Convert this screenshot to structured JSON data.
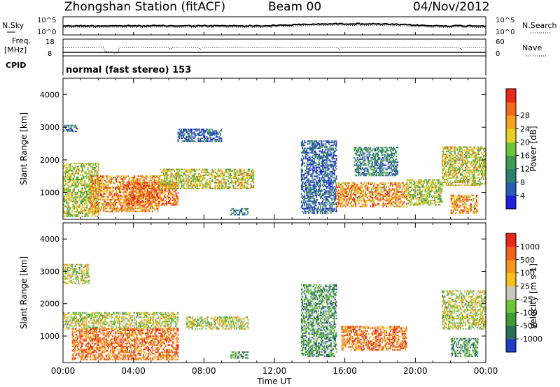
{
  "header": {
    "station": "Zhongshan Station (fitACF)",
    "beam": "Beam 00",
    "date": "04/Nov/2012"
  },
  "aux_panels": {
    "noise": {
      "left_label": "N.Sky",
      "right_label": "N.Search",
      "left_ticks": [
        "10^5",
        "10^0"
      ],
      "right_ticks": [
        "10^5",
        "10^0"
      ]
    },
    "freq": {
      "left_label_top": "Freq.",
      "left_label_bottom": "[MHz]",
      "right_label": "Nave",
      "left_ticks": [
        "18",
        "8"
      ],
      "right_ticks": [
        "60",
        "0"
      ]
    },
    "cpid": {
      "label": "CPID",
      "value": "normal (fast stereo) 153"
    }
  },
  "chart_data": [
    {
      "type": "heatmap",
      "name": "power",
      "ylabel": "Slant Range [km]",
      "ylim": [
        180,
        4500
      ],
      "yticks": [
        "1000",
        "2000",
        "3000",
        "4000"
      ],
      "colorbar_label": "Power [dB]",
      "colorbar_ticks": [
        "4",
        "8",
        "12",
        "16",
        "20",
        "24",
        "28"
      ],
      "colorbar_colors": [
        "#1e1edc",
        "#2a5cb8",
        "#2f7f73",
        "#3f9b52",
        "#6cc43a",
        "#e6d024",
        "#f5a21e",
        "#f26a1c",
        "#e8281c"
      ],
      "scatter_regions": [
        {
          "t0": 0.0,
          "t1": 2.0,
          "r0": 250,
          "r1": 1900,
          "level": 0.55
        },
        {
          "t0": 0.0,
          "t1": 0.8,
          "r0": 2850,
          "r1": 3050,
          "level": 0.2
        },
        {
          "t0": 1.5,
          "t1": 5.5,
          "r0": 400,
          "r1": 1500,
          "level": 0.75
        },
        {
          "t0": 3.5,
          "t1": 6.5,
          "r0": 600,
          "r1": 1300,
          "level": 0.85
        },
        {
          "t0": 5.5,
          "t1": 10.8,
          "r0": 1100,
          "r1": 1700,
          "level": 0.6
        },
        {
          "t0": 6.5,
          "t1": 9.0,
          "r0": 2550,
          "r1": 2950,
          "level": 0.2
        },
        {
          "t0": 9.5,
          "t1": 10.5,
          "r0": 300,
          "r1": 500,
          "level": 0.3
        },
        {
          "t0": 13.5,
          "t1": 15.5,
          "r0": 350,
          "r1": 2600,
          "level": 0.2
        },
        {
          "t0": 15.5,
          "t1": 19.5,
          "r0": 550,
          "r1": 1300,
          "level": 0.75
        },
        {
          "t0": 16.5,
          "t1": 19.0,
          "r0": 1500,
          "r1": 2400,
          "level": 0.3
        },
        {
          "t0": 19.5,
          "t1": 21.5,
          "r0": 600,
          "r1": 1400,
          "level": 0.55
        },
        {
          "t0": 21.5,
          "t1": 24.0,
          "r0": 1200,
          "r1": 2400,
          "level": 0.6
        },
        {
          "t0": 22.0,
          "t1": 23.5,
          "r0": 350,
          "r1": 900,
          "level": 0.75
        }
      ]
    },
    {
      "type": "heatmap",
      "name": "velocity",
      "ylabel": "Slant Range [km]",
      "xlabel": "Time UT",
      "xticks": [
        "00:00",
        "04:00",
        "08:00",
        "12:00",
        "16:00",
        "20:00",
        "00:00"
      ],
      "ylim": [
        180,
        4500
      ],
      "yticks": [
        "1000",
        "2000",
        "3000",
        "4000"
      ],
      "colorbar_label": "Velocity [m s-1]",
      "colorbar_ticks": [
        "1000",
        "500",
        "100",
        "25",
        "-25",
        "-100",
        "-500",
        "-1000"
      ],
      "colorbar_colors": [
        "#1e3cc8",
        "#2d6e5a",
        "#3f9b3a",
        "#6cc43a",
        "#c8c8be",
        "#f5c21e",
        "#f5961e",
        "#f0641c",
        "#e8281c"
      ],
      "scatter_regions": [
        {
          "t0": 0.0,
          "t1": 1.5,
          "r0": 2600,
          "r1": 3200,
          "level": 0.5
        },
        {
          "t0": 0.0,
          "t1": 6.5,
          "r0": 1200,
          "r1": 1700,
          "level": 0.5
        },
        {
          "t0": 0.5,
          "t1": 6.5,
          "r0": 250,
          "r1": 1200,
          "level": 0.8
        },
        {
          "t0": 7.0,
          "t1": 10.5,
          "r0": 1200,
          "r1": 1600,
          "level": 0.5
        },
        {
          "t0": 9.5,
          "t1": 10.5,
          "r0": 300,
          "r1": 500,
          "level": 0.3
        },
        {
          "t0": 13.5,
          "t1": 15.5,
          "r0": 350,
          "r1": 2600,
          "level": 0.3
        },
        {
          "t0": 15.8,
          "t1": 19.5,
          "r0": 550,
          "r1": 1300,
          "level": 0.8
        },
        {
          "t0": 21.5,
          "t1": 24.0,
          "r0": 1200,
          "r1": 2400,
          "level": 0.5
        },
        {
          "t0": 22.0,
          "t1": 23.5,
          "r0": 350,
          "r1": 900,
          "level": 0.3
        }
      ]
    }
  ]
}
